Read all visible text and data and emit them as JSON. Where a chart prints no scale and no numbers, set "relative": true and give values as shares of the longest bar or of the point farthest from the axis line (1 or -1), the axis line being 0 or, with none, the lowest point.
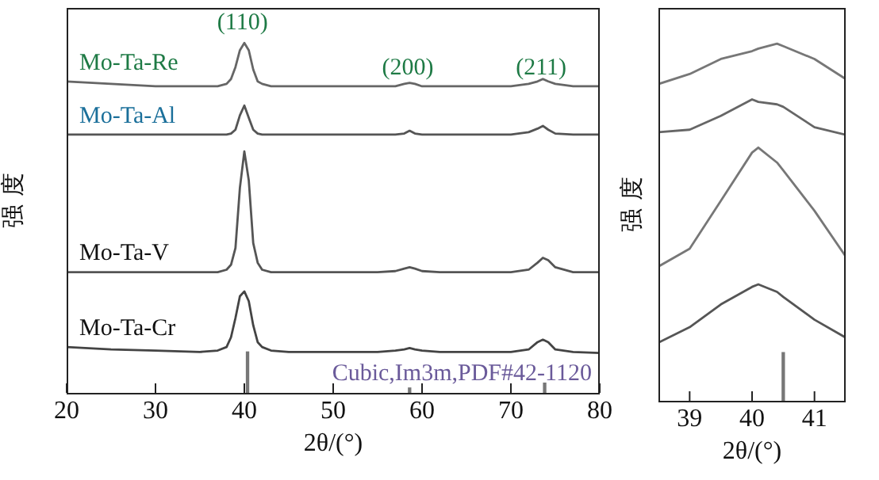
{
  "chart_data": [
    {
      "type": "line",
      "relative": true,
      "xlabel": "2θ/(°)",
      "ylabel": "强 度",
      "xlim": [
        20,
        80
      ],
      "xticks": [
        20,
        30,
        40,
        50,
        60,
        70,
        80
      ],
      "grid": false,
      "legend": false,
      "marker": "none",
      "x": [
        20,
        25,
        30,
        35,
        37,
        38,
        38.5,
        39,
        39.5,
        40,
        40.5,
        41,
        41.5,
        42,
        43,
        45,
        50,
        55,
        57,
        58,
        58.6,
        59.2,
        60,
        62,
        65,
        70,
        72,
        73,
        73.6,
        74.2,
        75,
        77,
        80
      ],
      "series": [
        {
          "name": "Mo-Ta-Re",
          "color": "#666666",
          "values": [
            0.89,
            0.883,
            0.876,
            0.876,
            0.876,
            0.883,
            0.897,
            0.931,
            0.979,
            1,
            0.979,
            0.924,
            0.89,
            0.883,
            0.876,
            0.876,
            0.876,
            0.876,
            0.876,
            0.883,
            0.886,
            0.883,
            0.876,
            0.876,
            0.876,
            0.876,
            0.883,
            0.89,
            0.897,
            0.89,
            0.883,
            0.876,
            0.876
          ]
        },
        {
          "name": "Mo-Ta-Al",
          "color": "#555555",
          "values": [
            0.738,
            0.738,
            0.738,
            0.738,
            0.738,
            0.738,
            0.741,
            0.752,
            0.793,
            0.821,
            0.786,
            0.752,
            0.741,
            0.738,
            0.738,
            0.738,
            0.738,
            0.738,
            0.738,
            0.741,
            0.749,
            0.741,
            0.738,
            0.738,
            0.738,
            0.738,
            0.745,
            0.755,
            0.763,
            0.752,
            0.741,
            0.738,
            0.738
          ]
        },
        {
          "name": "Mo-Ta-V",
          "color": "#555555",
          "values": [
            0.345,
            0.345,
            0.345,
            0.345,
            0.345,
            0.352,
            0.366,
            0.414,
            0.586,
            0.69,
            0.607,
            0.428,
            0.372,
            0.352,
            0.345,
            0.345,
            0.345,
            0.345,
            0.348,
            0.355,
            0.359,
            0.355,
            0.348,
            0.345,
            0.345,
            0.345,
            0.352,
            0.372,
            0.386,
            0.379,
            0.359,
            0.345,
            0.345
          ]
        },
        {
          "name": "Mo-Ta-Cr",
          "color": "#444444",
          "values": [
            0.131,
            0.124,
            0.121,
            0.117,
            0.121,
            0.131,
            0.159,
            0.214,
            0.276,
            0.29,
            0.262,
            0.193,
            0.145,
            0.131,
            0.121,
            0.117,
            0.117,
            0.117,
            0.121,
            0.124,
            0.128,
            0.124,
            0.121,
            0.117,
            0.117,
            0.117,
            0.124,
            0.145,
            0.152,
            0.145,
            0.124,
            0.117,
            0.114
          ]
        },
        {
          "type": "bar",
          "color": "#777777",
          "x": [
            40.36,
            58.6,
            73.8
          ],
          "values": [
            0.117,
            0.014,
            0.028
          ]
        }
      ],
      "annotations": [
        "(110)",
        "(200)",
        "(211)",
        "Cubic,Im3m,PDF#42-1120"
      ]
    },
    {
      "type": "line",
      "relative": true,
      "xlabel": "2θ/(°)",
      "ylabel": "强 度",
      "xlim": [
        38.5,
        41.5
      ],
      "xticks": [
        39,
        40,
        41
      ],
      "grid": false,
      "legend": false,
      "marker": "none",
      "x": [
        38.5,
        39,
        39.5,
        40,
        40.1,
        40.4,
        40.5,
        41,
        41.5
      ],
      "series": [
        {
          "color": "#777777",
          "values": [
            0.887,
            0.915,
            0.957,
            0.979,
            0.986,
            1,
            0.993,
            0.957,
            0.901
          ]
        },
        {
          "color": "#666666",
          "values": [
            0.752,
            0.759,
            0.798,
            0.844,
            0.837,
            0.83,
            0.823,
            0.766,
            0.745
          ]
        },
        {
          "color": "#777777",
          "values": [
            0.376,
            0.426,
            0.56,
            0.695,
            0.709,
            0.667,
            0.645,
            0.532,
            0.404
          ]
        },
        {
          "color": "#555555",
          "values": [
            0.163,
            0.206,
            0.27,
            0.319,
            0.326,
            0.305,
            0.291,
            0.227,
            0.177
          ]
        },
        {
          "type": "bar",
          "color": "#777777",
          "x": [
            40.5
          ],
          "values": [
            0.135
          ]
        }
      ]
    }
  ]
}
